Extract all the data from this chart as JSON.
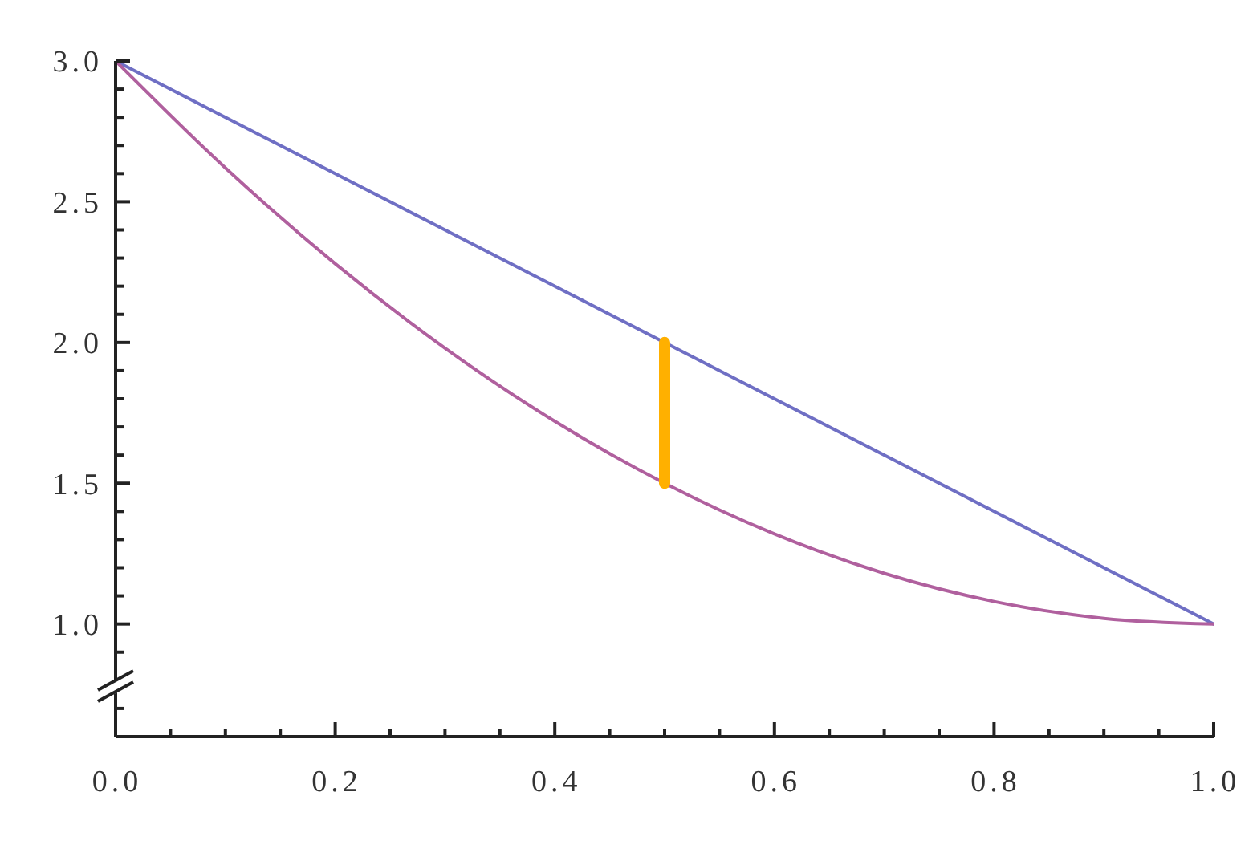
{
  "chart_data": {
    "type": "line",
    "series": [
      {
        "color": "#6f6fc4",
        "x": [
          0,
          1
        ],
        "values": [
          3.0,
          1.0
        ]
      },
      {
        "color": "#b0609e",
        "x": [
          0,
          0.1,
          0.2,
          0.3,
          0.4,
          0.5,
          0.6,
          0.7,
          0.8,
          0.9,
          1.0
        ],
        "values": [
          3.0,
          2.62,
          2.28,
          1.98,
          1.72,
          1.5,
          1.32,
          1.18,
          1.08,
          1.02,
          1.0
        ]
      },
      {
        "color": "#ffb000",
        "x": [
          0.5,
          0.5
        ],
        "values": [
          1.5,
          2.0
        ]
      }
    ],
    "xlim": [
      0,
      1
    ],
    "ylim": [
      0.6,
      3.0
    ],
    "xticks": [
      {
        "value": 0,
        "label": "0.0"
      },
      {
        "value": 0.05,
        "label": null
      },
      {
        "value": 0.1,
        "label": null
      },
      {
        "value": 0.15,
        "label": null
      },
      0.2,
      {
        "value": 0.25,
        "label": null
      },
      {
        "value": 0.3,
        "label": null
      },
      {
        "value": 0.35,
        "label": null
      },
      0.4,
      {
        "value": 0.45,
        "label": null
      },
      {
        "value": 0.5,
        "label": null
      },
      {
        "value": 0.55,
        "label": null
      },
      0.6,
      {
        "value": 0.65,
        "label": null
      },
      {
        "value": 0.7,
        "label": null
      },
      {
        "value": 0.75,
        "label": null
      },
      0.8,
      {
        "value": 0.85,
        "label": null
      },
      {
        "value": 0.9,
        "label": null
      },
      {
        "value": 0.95,
        "label": null
      },
      {
        "value": 1.0,
        "label": "1.0"
      }
    ],
    "yticks": [
      {
        "value": 0.7,
        "label": null
      },
      {
        "value": 0.9,
        "label": null
      },
      {
        "value": 1.0,
        "label": "1.0"
      },
      {
        "value": 1.1,
        "label": null
      },
      {
        "value": 1.2,
        "label": null
      },
      {
        "value": 1.3,
        "label": null
      },
      {
        "value": 1.4,
        "label": null
      },
      1.5,
      {
        "value": 1.6,
        "label": null
      },
      {
        "value": 1.7,
        "label": null
      },
      {
        "value": 1.8,
        "label": null
      },
      {
        "value": 1.9,
        "label": null
      },
      {
        "value": 2.0,
        "label": "2.0"
      },
      {
        "value": 2.1,
        "label": null
      },
      {
        "value": 2.2,
        "label": null
      },
      {
        "value": 2.3,
        "label": null
      },
      {
        "value": 2.4,
        "label": null
      },
      2.5,
      {
        "value": 2.6,
        "label": null
      },
      {
        "value": 2.7,
        "label": null
      },
      {
        "value": 2.8,
        "label": null
      },
      {
        "value": 2.9,
        "label": null
      },
      {
        "value": 3.0,
        "label": "3.0"
      }
    ],
    "marker": "none",
    "line_style": "solid"
  }
}
